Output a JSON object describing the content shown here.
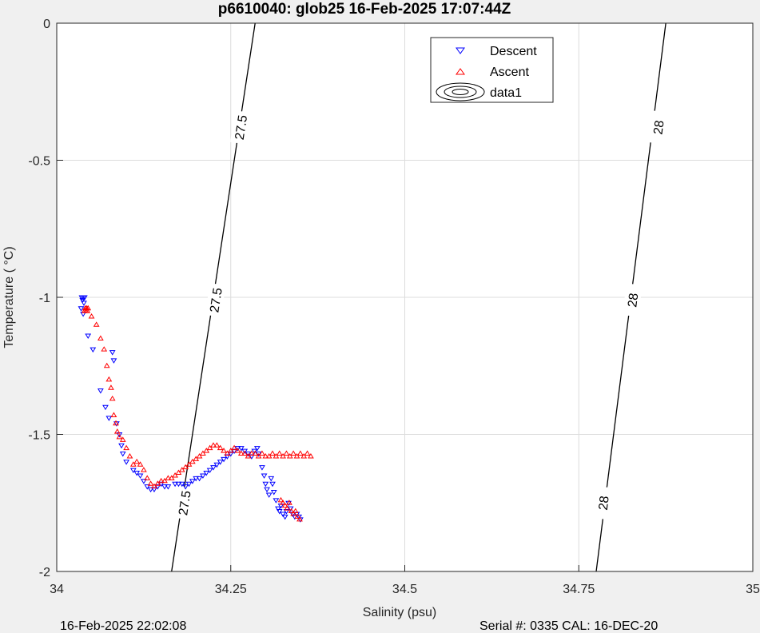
{
  "chart_data": {
    "type": "scatter",
    "title": "p6610040: glob25 16-Feb-2025 17:07:44Z",
    "xlabel": "Salinity (psu)",
    "ylabel": "Temperature (   °C)",
    "xlim": [
      34,
      35
    ],
    "ylim": [
      -2,
      0
    ],
    "xticks": [
      34,
      34.25,
      34.5,
      34.75,
      35
    ],
    "xticklabels": [
      "34",
      "34.25",
      "34.5",
      "34.75",
      "35"
    ],
    "yticks": [
      0,
      -0.5,
      -1,
      -1.5,
      -2
    ],
    "yticklabels": [
      "0",
      "-0.5",
      "-1",
      "-1.5",
      "-2"
    ],
    "grid": true,
    "legend_position": "top-right",
    "legend": [
      "Descent",
      "Ascent",
      "data1"
    ],
    "colors": {
      "descent": "#0000ff",
      "ascent": "#ff0000",
      "contour": "#000000",
      "grid": "#dcdcdc",
      "background": "#f0f0f0"
    },
    "series": [
      {
        "name": "Descent",
        "marker": "triangle-down",
        "x": [
          34.036,
          34.037,
          34.038,
          34.039,
          34.04,
          34.035,
          34.038,
          34.045,
          34.052,
          34.063,
          34.07,
          34.075,
          34.08,
          34.082,
          34.086,
          34.09,
          34.093,
          34.095,
          34.1,
          34.11,
          34.115,
          34.12,
          34.125,
          34.13,
          34.135,
          34.14,
          34.145,
          34.15,
          34.155,
          34.16,
          34.17,
          34.175,
          34.18,
          34.185,
          34.19,
          34.195,
          34.2,
          34.205,
          34.21,
          34.215,
          34.22,
          34.225,
          34.23,
          34.235,
          34.24,
          34.245,
          34.25,
          34.255,
          34.26,
          34.265,
          34.27,
          34.275,
          34.28,
          34.284,
          34.288,
          34.29,
          34.295,
          34.298,
          34.3,
          34.302,
          34.305,
          34.308,
          34.31,
          34.312,
          34.315,
          34.318,
          34.32,
          34.322,
          34.325,
          34.328,
          34.33,
          34.333,
          34.336,
          34.339,
          34.342,
          34.345,
          34.348,
          34.35
        ],
        "y": [
          -1.0,
          -1.01,
          -1.0,
          -1.02,
          -1.0,
          -1.04,
          -1.06,
          -1.14,
          -1.19,
          -1.34,
          -1.4,
          -1.44,
          -1.2,
          -1.23,
          -1.46,
          -1.5,
          -1.54,
          -1.57,
          -1.6,
          -1.63,
          -1.64,
          -1.65,
          -1.67,
          -1.69,
          -1.7,
          -1.7,
          -1.69,
          -1.68,
          -1.69,
          -1.69,
          -1.68,
          -1.68,
          -1.68,
          -1.69,
          -1.68,
          -1.67,
          -1.66,
          -1.66,
          -1.65,
          -1.64,
          -1.63,
          -1.62,
          -1.61,
          -1.6,
          -1.59,
          -1.58,
          -1.57,
          -1.56,
          -1.55,
          -1.55,
          -1.56,
          -1.57,
          -1.58,
          -1.56,
          -1.55,
          -1.57,
          -1.62,
          -1.65,
          -1.68,
          -1.7,
          -1.72,
          -1.66,
          -1.68,
          -1.71,
          -1.74,
          -1.77,
          -1.78,
          -1.76,
          -1.79,
          -1.8,
          -1.78,
          -1.75,
          -1.77,
          -1.79,
          -1.8,
          -1.79,
          -1.8,
          -1.81
        ]
      },
      {
        "name": "Ascent",
        "marker": "triangle-up",
        "x": [
          34.04,
          34.041,
          34.042,
          34.043,
          34.044,
          34.045,
          34.05,
          34.057,
          34.063,
          34.068,
          34.072,
          34.075,
          34.078,
          34.08,
          34.082,
          34.085,
          34.087,
          34.09,
          34.095,
          34.1,
          34.105,
          34.11,
          34.115,
          34.12,
          34.125,
          34.13,
          34.135,
          34.14,
          34.145,
          34.15,
          34.155,
          34.16,
          34.165,
          34.17,
          34.175,
          34.18,
          34.185,
          34.19,
          34.195,
          34.2,
          34.205,
          34.21,
          34.215,
          34.22,
          34.225,
          34.23,
          34.235,
          34.24,
          34.245,
          34.25,
          34.255,
          34.26,
          34.265,
          34.27,
          34.275,
          34.28,
          34.285,
          34.29,
          34.295,
          34.3,
          34.305,
          34.31,
          34.315,
          34.32,
          34.325,
          34.33,
          34.335,
          34.34,
          34.345,
          34.35,
          34.355,
          34.36,
          34.365,
          34.322,
          34.325,
          34.328,
          34.331,
          34.334,
          34.337,
          34.34,
          34.343,
          34.346,
          34.349
        ],
        "y": [
          -1.05,
          -1.04,
          -1.05,
          -1.04,
          -1.05,
          -1.04,
          -1.07,
          -1.1,
          -1.15,
          -1.19,
          -1.25,
          -1.3,
          -1.33,
          -1.37,
          -1.43,
          -1.46,
          -1.49,
          -1.51,
          -1.52,
          -1.55,
          -1.58,
          -1.61,
          -1.6,
          -1.61,
          -1.63,
          -1.66,
          -1.68,
          -1.69,
          -1.68,
          -1.67,
          -1.67,
          -1.66,
          -1.66,
          -1.65,
          -1.64,
          -1.63,
          -1.62,
          -1.61,
          -1.6,
          -1.59,
          -1.58,
          -1.57,
          -1.56,
          -1.55,
          -1.54,
          -1.54,
          -1.55,
          -1.56,
          -1.57,
          -1.56,
          -1.55,
          -1.56,
          -1.57,
          -1.57,
          -1.58,
          -1.57,
          -1.57,
          -1.58,
          -1.57,
          -1.58,
          -1.58,
          -1.57,
          -1.58,
          -1.57,
          -1.58,
          -1.57,
          -1.58,
          -1.57,
          -1.58,
          -1.57,
          -1.58,
          -1.57,
          -1.58,
          -1.74,
          -1.75,
          -1.76,
          -1.77,
          -1.75,
          -1.78,
          -1.79,
          -1.78,
          -1.8,
          -1.81
        ]
      }
    ],
    "contours": [
      {
        "level_label": "27.5",
        "x_at_ylim": [
          34.165,
          34.285
        ]
      },
      {
        "level_label": "28",
        "x_at_ylim": [
          34.775,
          34.875
        ]
      }
    ],
    "contour_labels": [
      {
        "text": "27.5",
        "x": 34.264,
        "y": -0.38
      },
      {
        "text": "27.5",
        "x": 34.228,
        "y": -1.01
      },
      {
        "text": "27.5",
        "x": 34.183,
        "y": -1.75
      },
      {
        "text": "28",
        "x": 34.864,
        "y": -0.38
      },
      {
        "text": "28",
        "x": 34.827,
        "y": -1.01
      },
      {
        "text": "28",
        "x": 34.785,
        "y": -1.75
      }
    ]
  },
  "footer": {
    "left": "16-Feb-2025 22:02:08",
    "right": "Serial #: 0335  CAL: 16-DEC-20"
  }
}
